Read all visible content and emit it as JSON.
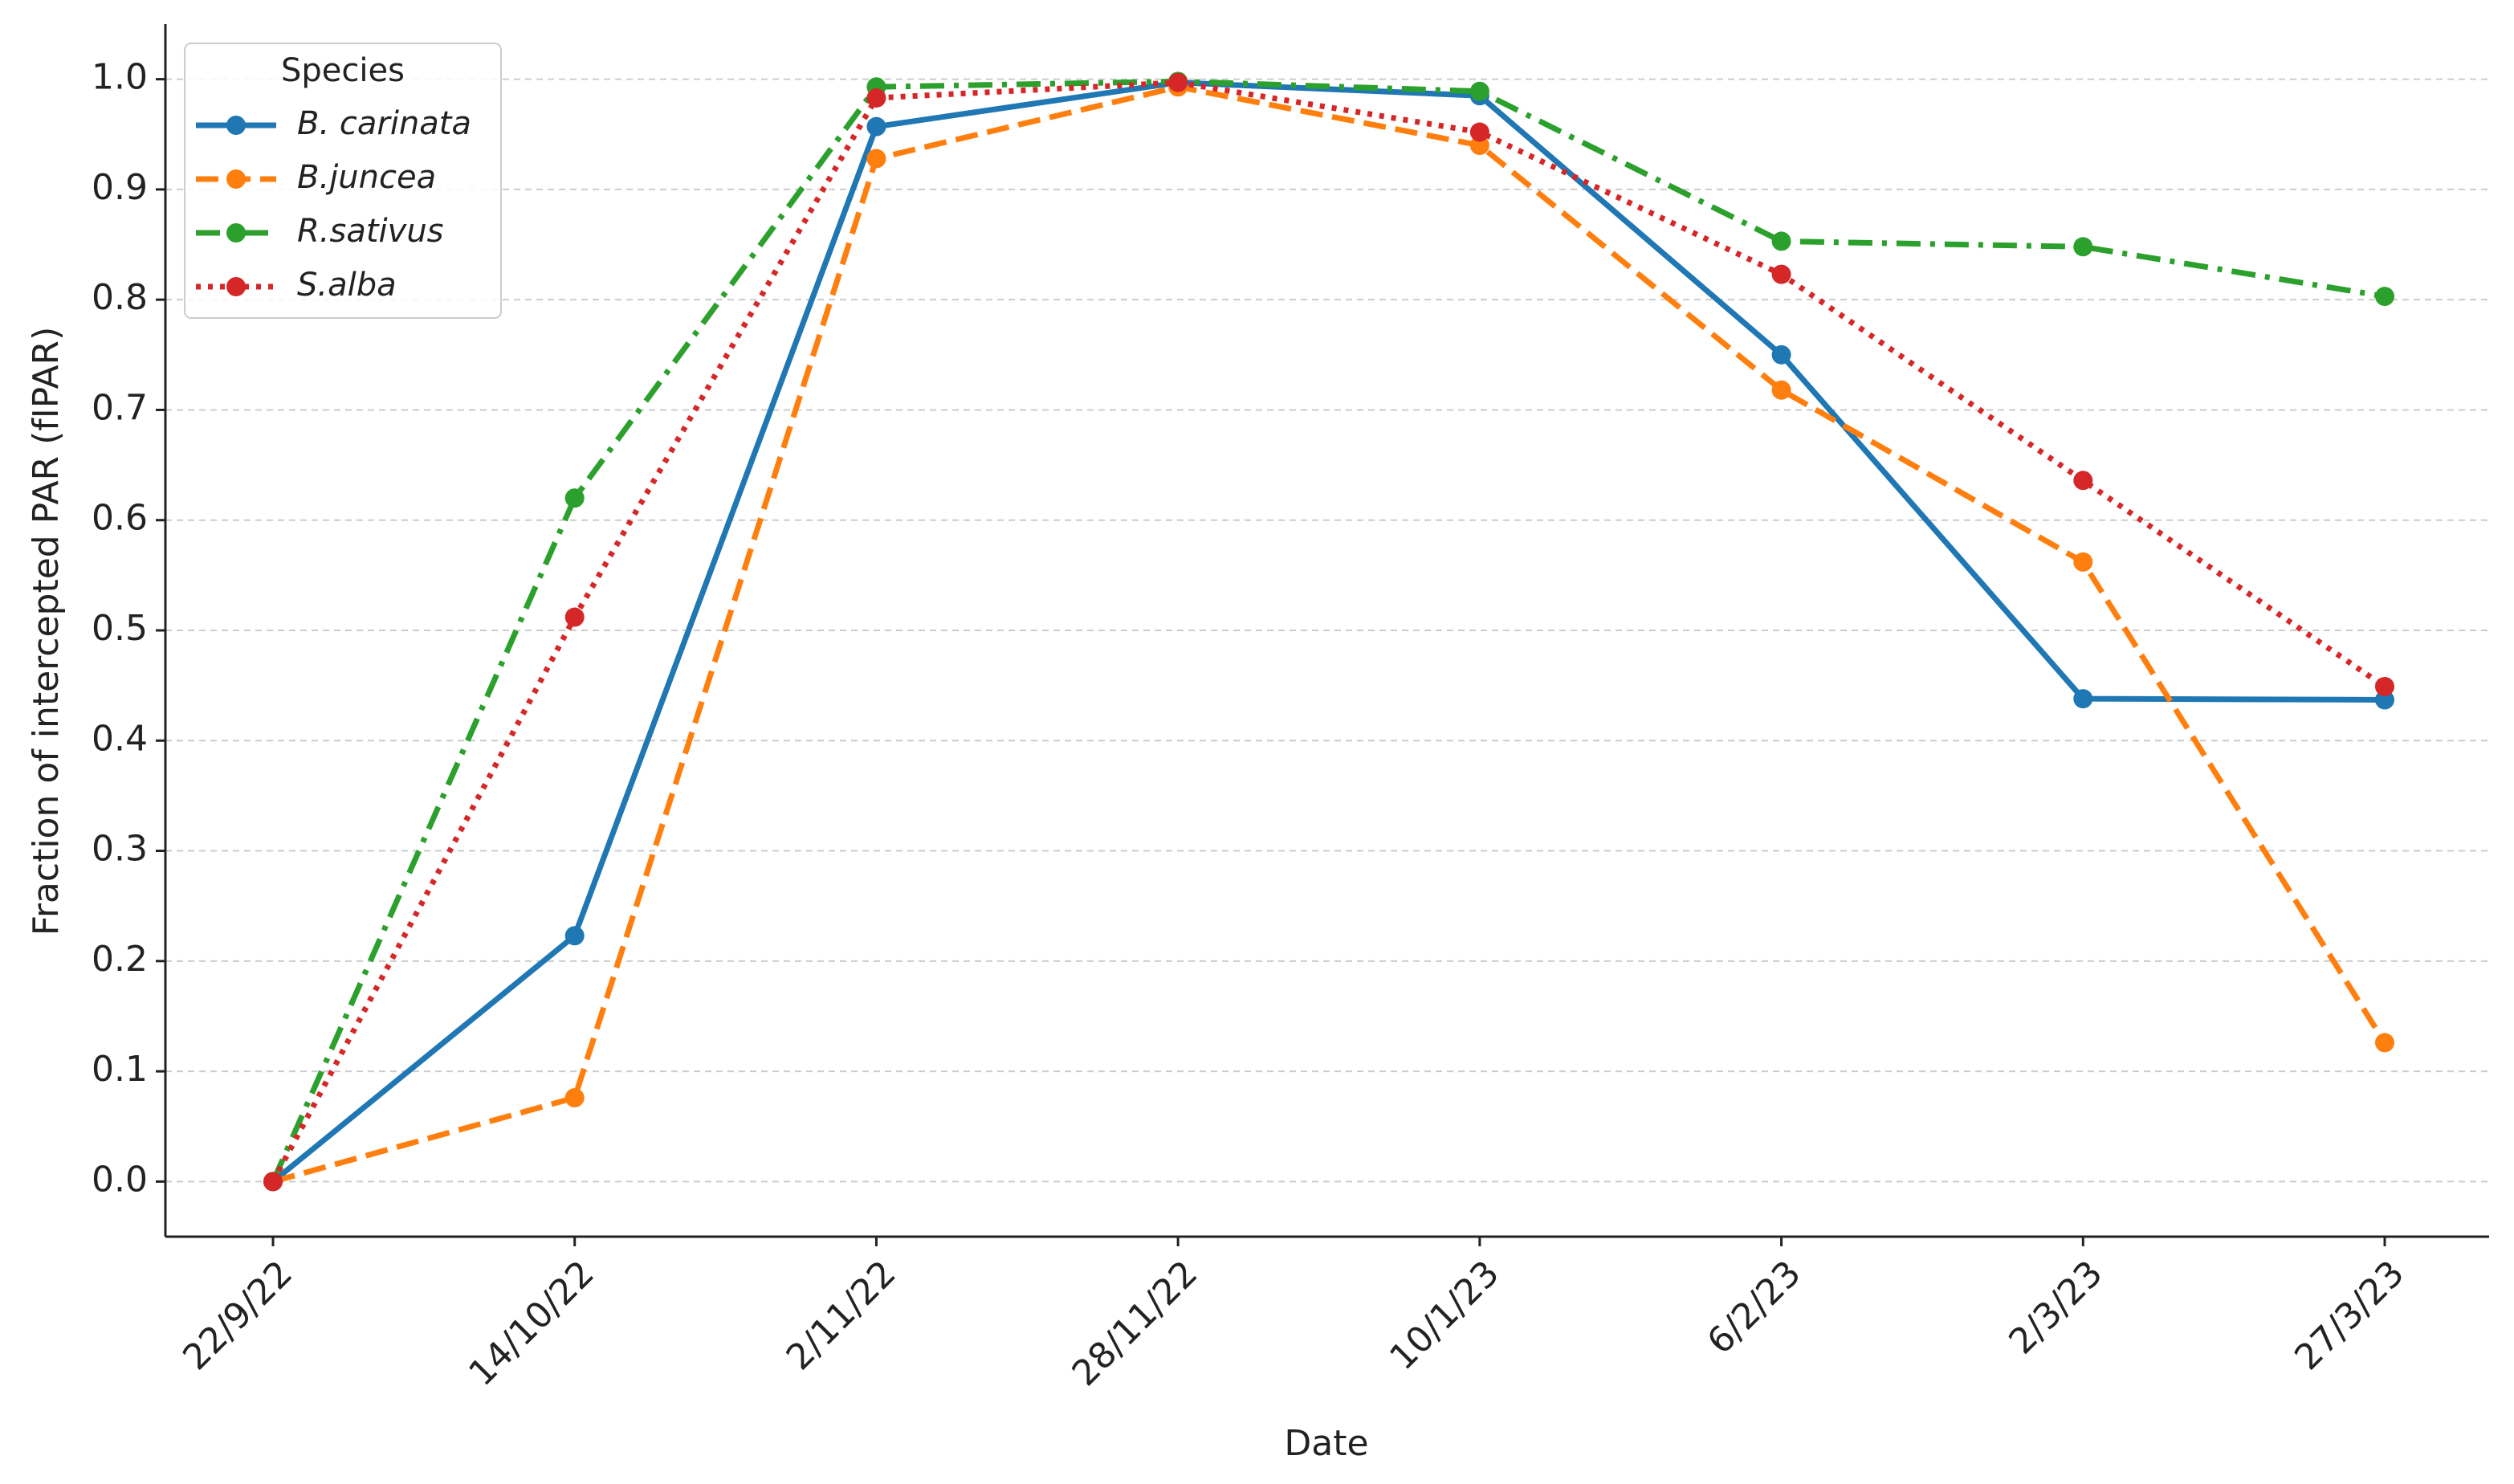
{
  "chart_data": {
    "type": "line",
    "x_label": "Date",
    "y_label": "Fraction of intercepted PAR (fIPAR)",
    "categories": [
      "22/9/22",
      "14/10/22",
      "2/11/22",
      "28/11/22",
      "10/1/23",
      "6/2/23",
      "2/3/23",
      "27/3/23"
    ],
    "series": [
      {
        "name": "B. carinata",
        "color": "#1f77b4",
        "linestyle": "solid",
        "values": [
          0,
          0.223,
          0.957,
          0.997,
          0.985,
          0.75,
          0.438,
          0.437
        ]
      },
      {
        "name": "B.juncea",
        "color": "#ff7f0e",
        "linestyle": "dashed",
        "values": [
          0,
          0.076,
          0.928,
          0.993,
          0.94,
          0.718,
          0.562,
          0.126
        ]
      },
      {
        "name": "R.sativus",
        "color": "#2ca02c",
        "linestyle": "dashdot",
        "values": [
          0,
          0.62,
          0.993,
          0.998,
          0.989,
          0.853,
          0.848,
          0.803
        ]
      },
      {
        "name": "S.alba",
        "color": "#d62728",
        "linestyle": "dotted",
        "values": [
          0,
          0.512,
          0.983,
          0.997,
          0.952,
          0.823,
          0.636,
          0.449
        ]
      }
    ],
    "legend_title": "Species",
    "legend": "upper left",
    "ylim": [
      -0.05,
      1.05
    ],
    "yticks": [
      {
        "value": 0,
        "label": "0.0"
      },
      0.1,
      0.2,
      0.3,
      0.4,
      0.5,
      0.6,
      0.7,
      0.8,
      0.9,
      {
        "value": 1,
        "label": "1.0"
      }
    ],
    "grid": true
  }
}
